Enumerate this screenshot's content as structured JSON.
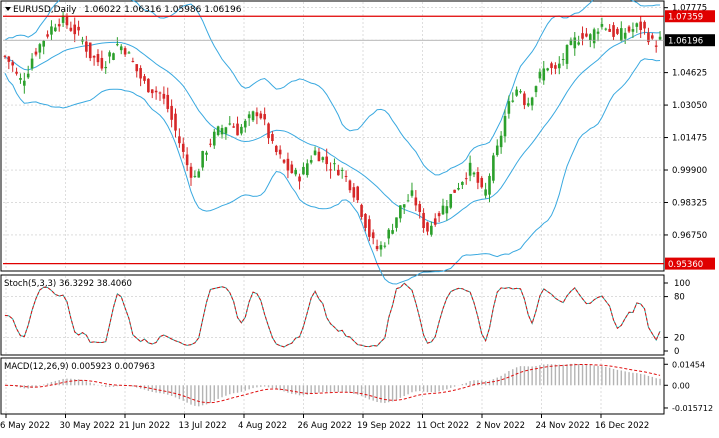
{
  "main": {
    "symbol": "EURUSD,Daily",
    "ohlc": "1.06022 1.06316 1.05986 1.06196",
    "price_ticks": [
      "1.07775",
      "1.06196",
      "1.04625",
      "1.03050",
      "1.01475",
      "0.99900",
      "0.98325",
      "0.96750"
    ],
    "ticks_values": [
      1.07775,
      1.06196,
      1.04625,
      1.0305,
      1.01475,
      0.999,
      0.98325,
      0.9675
    ],
    "ylim": [
      0.9505,
      1.0805
    ],
    "upper_level": {
      "label": "1.07359",
      "value": 1.07359,
      "color": "#e00000"
    },
    "lower_level": {
      "label": "0.95360",
      "value": 0.9536,
      "color": "#e00000"
    },
    "current_price": {
      "label": "1.06196",
      "value": 1.06196
    },
    "colors": {
      "bull": "#2ca02c",
      "bear": "#d62728",
      "bands": "#3aa9e0",
      "grid": "#c8c8c8"
    }
  },
  "stoch": {
    "label": "Stoch(5,3,3) 36.3292 38.4060",
    "ticks": [
      "100",
      "80",
      "20",
      "0"
    ],
    "ticks_values": [
      100,
      80,
      20,
      0
    ]
  },
  "macd": {
    "label": "MACD(12,26,9) 0.005923 0.007963",
    "ticks": [
      "0.01454",
      "0.00",
      "-0.015712"
    ],
    "ticks_values": [
      0.01454,
      0.0,
      -0.015712
    ],
    "ylim": [
      -0.0185,
      0.0175
    ]
  },
  "date_axis": [
    "6 May 2022",
    "30 May 2022",
    "21 Jun 2022",
    "13 Jul 2022",
    "4 Aug 2022",
    "26 Aug 2022",
    "19 Sep 2022",
    "11 Oct 2022",
    "2 Nov 2022",
    "24 Nov 2022",
    "16 Dec 2022"
  ],
  "chart_data": {
    "type": "candlestick",
    "close_anchors": [
      [
        1.054,
        1.05,
        1.042,
        1.045,
        1.055,
        1.06,
        1.065,
        1.07,
        1.072,
        1.069,
        1.066,
        1.062
      ],
      [
        1.055,
        1.052,
        1.05,
        1.056,
        1.06,
        1.058,
        1.052,
        1.045,
        1.04,
        1.038,
        1.036,
        1.03
      ],
      [
        1.02,
        1.01,
        1.0,
        0.995,
        1.005,
        1.012,
        1.017,
        1.02,
        1.022,
        1.018,
        1.021,
        1.025
      ],
      [
        1.028,
        1.02,
        1.01,
        1.005,
        1.0,
        0.997,
        0.996,
        1.003,
        1.008,
        1.005,
        1.001,
        1.0
      ],
      [
        0.998,
        0.992,
        0.985,
        0.975,
        0.965,
        0.96,
        0.965,
        0.972,
        0.98,
        0.984,
        0.987,
        0.975
      ],
      [
        0.97,
        0.975,
        0.98,
        0.985,
        0.99,
        0.995,
        1.0,
        0.994,
        0.985,
        1.0,
        1.01,
        1.025
      ],
      [
        1.035,
        1.04,
        1.03,
        1.038,
        1.045,
        1.05,
        1.046,
        1.052,
        1.058,
        1.062,
        1.065,
        1.063
      ],
      [
        1.068,
        1.07,
        1.066,
        1.064,
        1.066,
        1.067,
        1.069,
        1.066,
        1.06,
        1.062
      ]
    ]
  }
}
